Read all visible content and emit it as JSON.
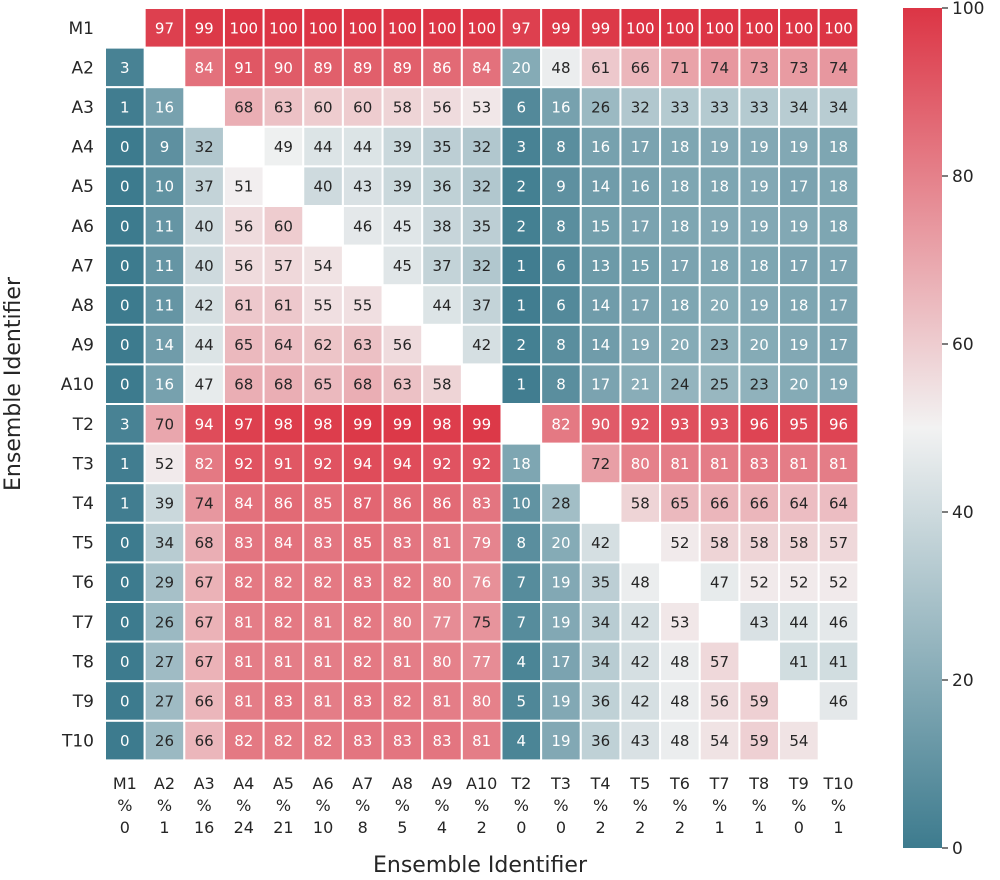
{
  "chart_data": {
    "type": "heatmap",
    "title": "",
    "xlabel": "Ensemble Identifier",
    "ylabel": "Ensemble Identifier",
    "row_labels": [
      "M1",
      "A2",
      "A3",
      "A4",
      "A5",
      "A6",
      "A7",
      "A8",
      "A9",
      "A10",
      "T2",
      "T3",
      "T4",
      "T5",
      "T6",
      "T7",
      "T8",
      "T9",
      "T10"
    ],
    "col_labels": [
      "M1",
      "A2",
      "A3",
      "A4",
      "A5",
      "A6",
      "A7",
      "A8",
      "A9",
      "A10",
      "T2",
      "T3",
      "T4",
      "T5",
      "T6",
      "T7",
      "T8",
      "T9",
      "T10"
    ],
    "col_percent_symbol": "%",
    "col_percent": [
      "0",
      "1",
      "16",
      "24",
      "21",
      "10",
      "8",
      "5",
      "4",
      "2",
      "0",
      "0",
      "2",
      "2",
      "2",
      "1",
      "1",
      "0",
      "1"
    ],
    "values": [
      [
        null,
        97,
        99,
        100,
        100,
        100,
        100,
        100,
        100,
        100,
        97,
        99,
        99,
        100,
        100,
        100,
        100,
        100,
        100
      ],
      [
        3,
        null,
        84,
        91,
        90,
        89,
        89,
        89,
        86,
        84,
        20,
        48,
        61,
        66,
        71,
        74,
        73,
        73,
        74
      ],
      [
        1,
        16,
        null,
        68,
        63,
        60,
        60,
        58,
        56,
        53,
        6,
        16,
        26,
        32,
        33,
        33,
        33,
        34,
        34
      ],
      [
        0,
        9,
        32,
        null,
        49,
        44,
        44,
        39,
        35,
        32,
        3,
        8,
        16,
        17,
        18,
        19,
        19,
        19,
        18
      ],
      [
        0,
        10,
        37,
        51,
        null,
        40,
        43,
        39,
        36,
        32,
        2,
        9,
        14,
        16,
        18,
        18,
        19,
        17,
        18
      ],
      [
        0,
        11,
        40,
        56,
        60,
        null,
        46,
        45,
        38,
        35,
        2,
        8,
        15,
        17,
        18,
        19,
        19,
        19,
        18
      ],
      [
        0,
        11,
        40,
        56,
        57,
        54,
        null,
        45,
        37,
        32,
        1,
        6,
        13,
        15,
        17,
        18,
        18,
        17,
        17
      ],
      [
        0,
        11,
        42,
        61,
        61,
        55,
        55,
        null,
        44,
        37,
        1,
        6,
        14,
        17,
        18,
        20,
        19,
        18,
        17
      ],
      [
        0,
        14,
        44,
        65,
        64,
        62,
        63,
        56,
        null,
        42,
        2,
        8,
        14,
        19,
        20,
        23,
        20,
        19,
        17
      ],
      [
        0,
        16,
        47,
        68,
        68,
        65,
        68,
        63,
        58,
        null,
        1,
        8,
        17,
        21,
        24,
        25,
        23,
        20,
        19
      ],
      [
        3,
        70,
        94,
        97,
        98,
        98,
        99,
        99,
        98,
        99,
        null,
        82,
        90,
        92,
        93,
        93,
        96,
        95,
        96
      ],
      [
        1,
        52,
        82,
        92,
        91,
        92,
        94,
        94,
        92,
        92,
        18,
        null,
        72,
        80,
        81,
        81,
        83,
        81,
        81
      ],
      [
        1,
        39,
        74,
        84,
        86,
        85,
        87,
        86,
        86,
        83,
        10,
        28,
        null,
        58,
        65,
        66,
        66,
        64,
        64
      ],
      [
        0,
        34,
        68,
        83,
        84,
        83,
        85,
        83,
        81,
        79,
        8,
        20,
        42,
        null,
        52,
        58,
        58,
        58,
        57
      ],
      [
        0,
        29,
        67,
        82,
        82,
        82,
        83,
        82,
        80,
        76,
        7,
        19,
        35,
        48,
        null,
        47,
        52,
        52,
        52
      ],
      [
        0,
        26,
        67,
        81,
        82,
        81,
        82,
        80,
        77,
        75,
        7,
        19,
        34,
        42,
        53,
        null,
        43,
        44,
        46
      ],
      [
        0,
        27,
        67,
        81,
        81,
        81,
        82,
        81,
        80,
        77,
        4,
        17,
        34,
        42,
        48,
        57,
        null,
        41,
        41
      ],
      [
        0,
        27,
        66,
        81,
        83,
        81,
        83,
        82,
        81,
        80,
        5,
        19,
        36,
        42,
        48,
        56,
        59,
        null,
        46
      ],
      [
        0,
        26,
        66,
        82,
        82,
        82,
        83,
        83,
        83,
        81,
        4,
        19,
        36,
        43,
        48,
        54,
        59,
        54,
        null
      ]
    ],
    "colorbar": {
      "min": 0,
      "max": 100,
      "ticks": [
        "0",
        "20",
        "40",
        "60",
        "80",
        "100"
      ]
    },
    "colormap": {
      "low": "#3d7b8e",
      "mid": "#f2f2f2",
      "high": "#dc3545"
    }
  }
}
